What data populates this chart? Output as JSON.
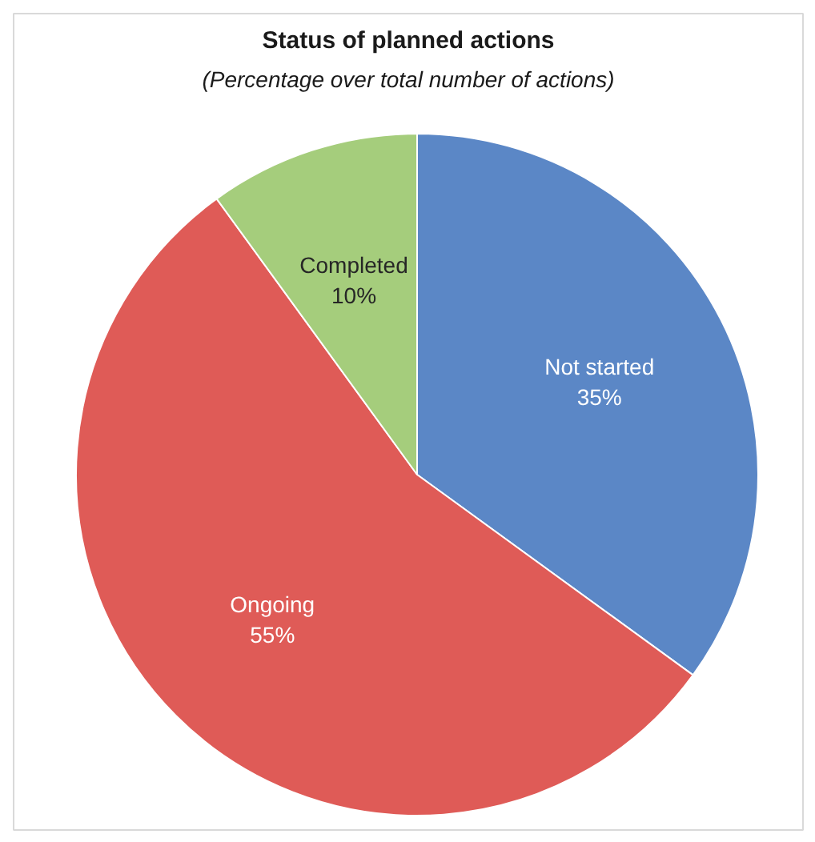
{
  "chart_data": {
    "type": "pie",
    "title": "Status of planned actions",
    "subtitle": "(Percentage over total number of actions)",
    "categories": [
      "Not started",
      "Ongoing",
      "Completed"
    ],
    "values": [
      35,
      55,
      10
    ],
    "colors": [
      "#5b87c6",
      "#df5b57",
      "#a5cd7c"
    ],
    "value_labels": [
      "35%",
      "55%",
      "10%"
    ]
  }
}
